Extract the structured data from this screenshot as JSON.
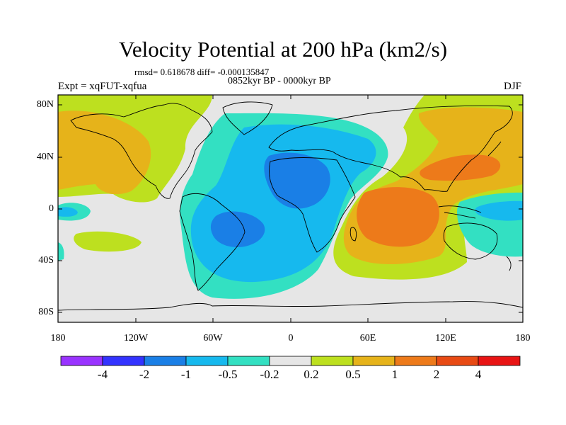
{
  "title": "Velocity Potential at 200 hPa (km2/s)",
  "stats_line": "rmsd= 0.618678 diff= -0.000135847",
  "period_line": "0852kyr BP - 0000kyr BP",
  "experiment_label": "Expt = xqFUT-xqfua",
  "season_label": "DJF",
  "map": {
    "projection": "cylindrical equidistant",
    "lat_ticks": [
      "80N",
      "40N",
      "0",
      "40S",
      "80S"
    ],
    "lon_ticks": [
      "180",
      "120W",
      "60W",
      "0",
      "60E",
      "120E",
      "180"
    ]
  },
  "colorbar": {
    "levels": [
      "-4",
      "-2",
      "-1",
      "-0.5",
      "-0.2",
      "0.2",
      "0.5",
      "1",
      "2",
      "4"
    ],
    "colors": [
      "#9933ff",
      "#3333ff",
      "#1a7fe6",
      "#16b9ee",
      "#33e0c2",
      "#e6e6e6",
      "#bde01f",
      "#e6b31a",
      "#ed7a1a",
      "#e84a14",
      "#e81414"
    ]
  },
  "colors": {
    "ocean_background": "#e6e6e6",
    "coastline": "#000000"
  }
}
